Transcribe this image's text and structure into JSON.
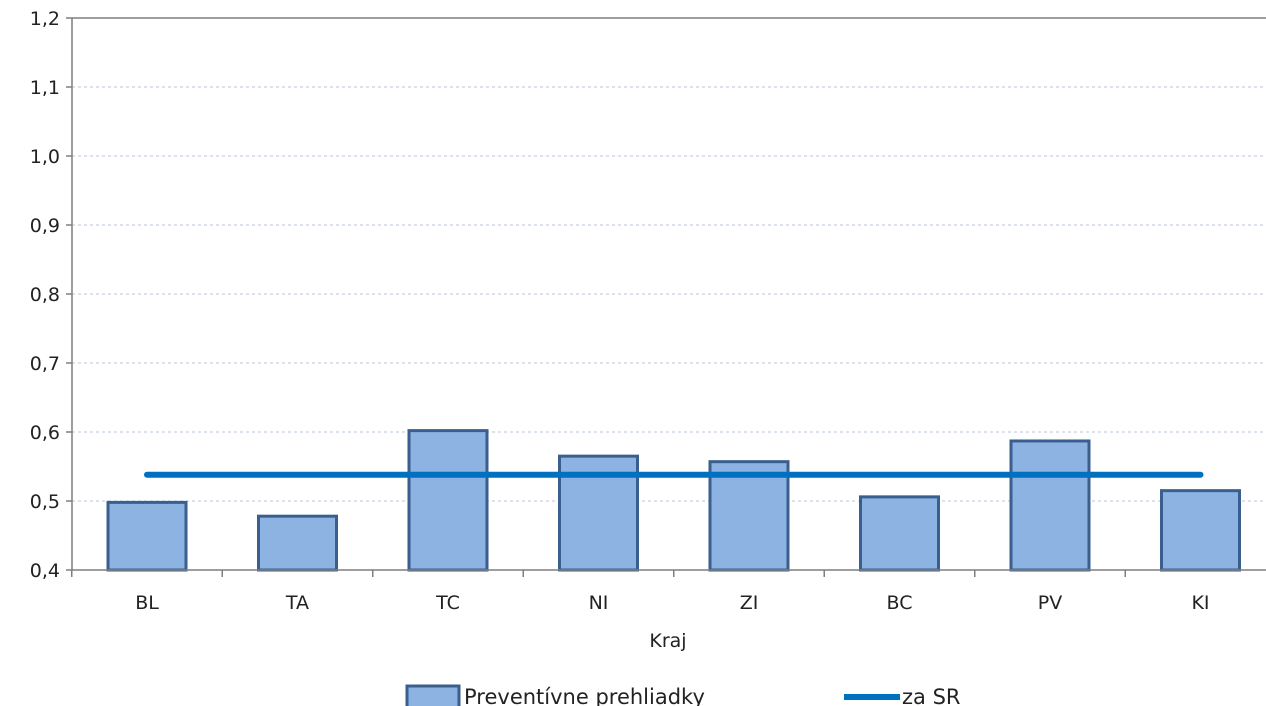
{
  "chart_data": {
    "type": "bar",
    "xlabel": "Kraj",
    "ylabel": "",
    "categories": [
      "BL",
      "TA",
      "TC",
      "NI",
      "ZI",
      "BC",
      "PV",
      "KI"
    ],
    "ylim": [
      0.4,
      1.2
    ],
    "yticks": [
      "0,4",
      "0,5",
      "0,6",
      "0,7",
      "0,8",
      "0,9",
      "1,0",
      "1,1",
      "1,2"
    ],
    "grid": true,
    "legend_position": "bottom",
    "series": [
      {
        "name": "Preventívne prehliadky",
        "kind": "bar",
        "color": "#8db3e2",
        "edge_color": "#3a5f8f",
        "values": [
          0.498,
          0.478,
          0.602,
          0.565,
          0.557,
          0.506,
          0.587,
          0.515
        ]
      },
      {
        "name": "za SR",
        "kind": "line",
        "color": "#0070c0",
        "values": [
          0.538,
          0.538,
          0.538,
          0.538,
          0.538,
          0.538,
          0.538,
          0.538
        ]
      }
    ]
  }
}
